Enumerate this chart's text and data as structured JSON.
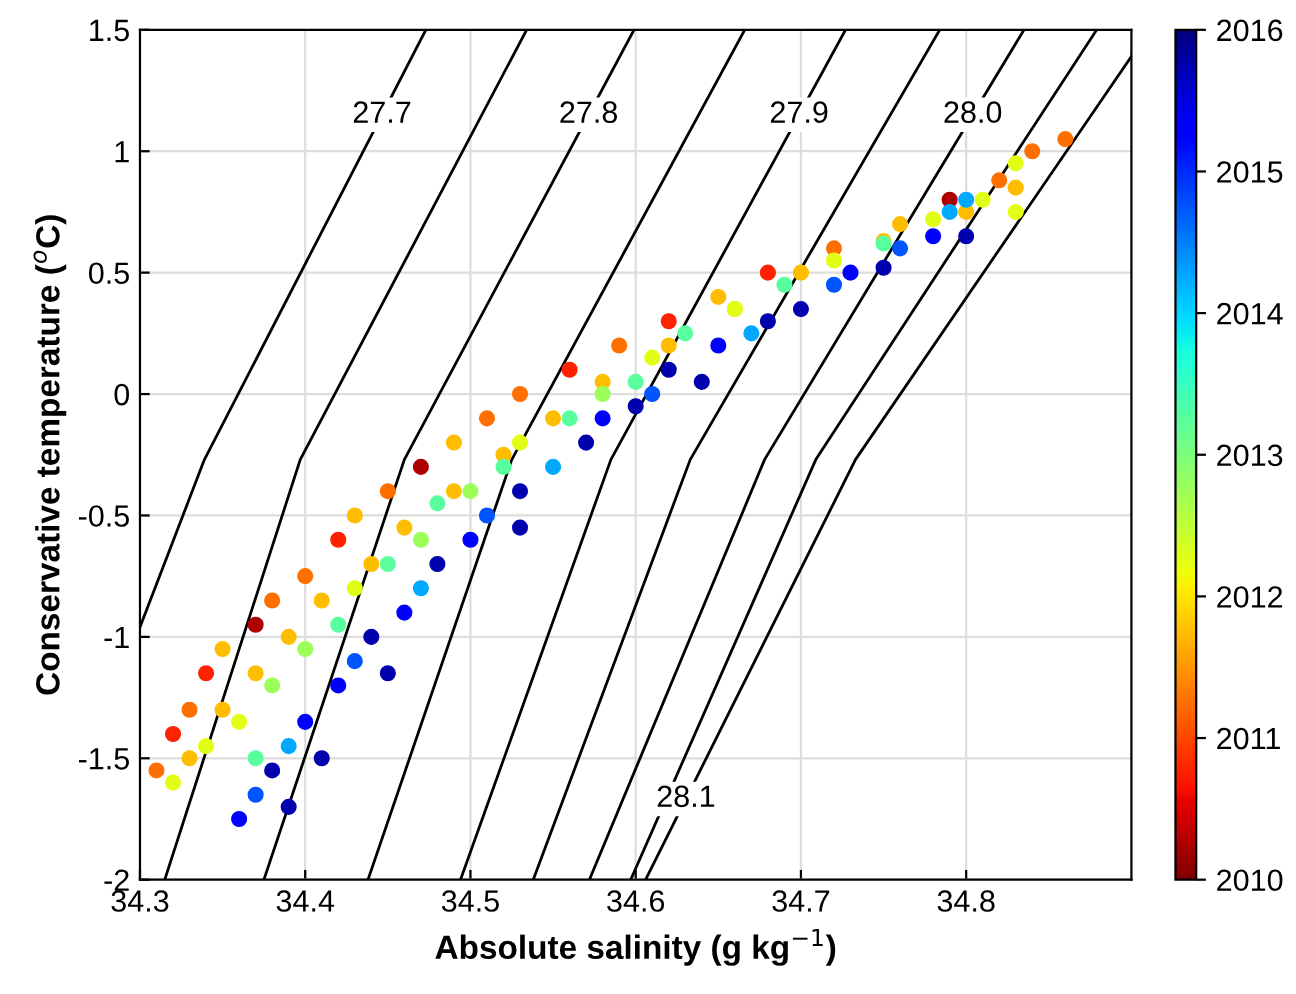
{
  "chart_data": {
    "type": "scatter",
    "xlabel": "Absolute salinity (g kg$^{−1}$)",
    "ylabel": "Conservative temperature ($^{o}$C)",
    "xlim": [
      34.3,
      34.9
    ],
    "xticks": [
      34.3,
      34.4,
      34.5,
      34.6,
      34.7,
      34.8
    ],
    "ylim": [
      -2,
      1.5
    ],
    "yticks": [
      -2,
      -1.5,
      -1,
      -0.5,
      0,
      0.5,
      1,
      1.5
    ],
    "clim": [
      2010,
      2016
    ],
    "cticks": [
      2010,
      2011,
      2012,
      2013,
      2014,
      2015,
      2016
    ],
    "grid": true,
    "series": [
      {
        "type": "line",
        "name": "27.7",
        "color": "#000000",
        "x": [
          34.473,
          34.339,
          34.3
        ],
        "values": [
          1.5,
          -0.27,
          -0.96
        ]
      },
      {
        "type": "line",
        "color": "#000000",
        "x": [
          34.534,
          34.397,
          34.315
        ],
        "values": [
          1.5,
          -0.27,
          -2
        ]
      },
      {
        "type": "line",
        "name": "27.8",
        "color": "#000000",
        "x": [
          34.599,
          34.46,
          34.375
        ],
        "values": [
          1.5,
          -0.27,
          -2
        ]
      },
      {
        "type": "line",
        "color": "#000000",
        "x": [
          34.666,
          34.525,
          34.438
        ],
        "values": [
          1.5,
          -0.27,
          -2
        ]
      },
      {
        "type": "line",
        "name": "27.9",
        "color": "#000000",
        "x": [
          34.727,
          34.585,
          34.494
        ],
        "values": [
          1.5,
          -0.27,
          -2
        ]
      },
      {
        "type": "line",
        "color": "#000000",
        "x": [
          34.784,
          34.633,
          34.538
        ],
        "values": [
          1.5,
          -0.27,
          -2
        ]
      },
      {
        "type": "line",
        "name": "28.0",
        "color": "#000000",
        "x": [
          34.835,
          34.678,
          34.572
        ],
        "values": [
          1.5,
          -0.27,
          -2
        ]
      },
      {
        "type": "line",
        "color": "#000000",
        "x": [
          34.879,
          34.709,
          34.597
        ],
        "values": [
          1.5,
          -0.27,
          -2
        ]
      },
      {
        "type": "line",
        "name": "28.1",
        "color": "#000000",
        "x": [
          34.9,
          34.733,
          34.606
        ],
        "values": [
          1.39,
          -0.27,
          -2
        ]
      },
      {
        "marker": "circle",
        "x": [
          34.31,
          34.32,
          34.33,
          34.34,
          34.35,
          34.37,
          34.38,
          34.4,
          34.42,
          34.43,
          34.45,
          34.47,
          34.49,
          34.51,
          34.53,
          34.56,
          34.59,
          34.62,
          34.65,
          34.68,
          34.72,
          34.76,
          34.79,
          34.82,
          34.84,
          34.86,
          34.33,
          34.35,
          34.37,
          34.39,
          34.41,
          34.44,
          34.46,
          34.49,
          34.52,
          34.55,
          34.58,
          34.62,
          34.66,
          34.7,
          34.75,
          34.8,
          34.83,
          34.32,
          34.34,
          34.36,
          34.37,
          34.38,
          34.4,
          34.42,
          34.43,
          34.45,
          34.47,
          34.48,
          34.5,
          34.52,
          34.53,
          34.56,
          34.58,
          34.6,
          34.61,
          34.63,
          34.66,
          34.69,
          34.72,
          34.75,
          34.78,
          34.81,
          34.83,
          34.83,
          34.36,
          34.37,
          34.38,
          34.39,
          34.39,
          34.4,
          34.41,
          34.42,
          34.43,
          34.44,
          34.45,
          34.46,
          34.47,
          34.48,
          34.5,
          34.51,
          34.53,
          34.53,
          34.55,
          34.57,
          34.58,
          34.6,
          34.61,
          34.62,
          34.64,
          34.65,
          34.67,
          34.68,
          34.7,
          34.72,
          34.73,
          34.75,
          34.76,
          34.78,
          34.79,
          34.8,
          34.8
        ],
        "values": [
          -1.55,
          -1.4,
          -1.3,
          -1.15,
          -1.05,
          -0.95,
          -0.85,
          -0.75,
          -0.6,
          -0.5,
          -0.4,
          -0.3,
          -0.2,
          -0.1,
          0.0,
          0.1,
          0.2,
          0.3,
          0.4,
          0.5,
          0.6,
          0.7,
          0.8,
          0.88,
          1.0,
          1.05,
          -1.5,
          -1.3,
          -1.15,
          -1.0,
          -0.85,
          -0.7,
          -0.55,
          -0.4,
          -0.25,
          -0.1,
          0.05,
          0.2,
          0.35,
          0.5,
          0.63,
          0.75,
          0.85,
          -1.6,
          -1.45,
          -1.35,
          -1.5,
          -1.2,
          -1.05,
          -0.95,
          -0.8,
          -0.7,
          -0.6,
          -0.45,
          -0.4,
          -0.3,
          -0.2,
          -0.1,
          0.0,
          0.05,
          0.15,
          0.25,
          0.35,
          0.45,
          0.55,
          0.62,
          0.72,
          0.8,
          0.95,
          0.75,
          -1.75,
          -1.65,
          -1.55,
          -1.7,
          -1.45,
          -1.35,
          -1.5,
          -1.2,
          -1.1,
          -1.0,
          -1.15,
          -0.9,
          -0.8,
          -0.7,
          -0.6,
          -0.5,
          -0.55,
          -0.4,
          -0.3,
          -0.2,
          -0.1,
          -0.05,
          0.0,
          0.1,
          0.05,
          0.2,
          0.25,
          0.3,
          0.35,
          0.45,
          0.5,
          0.52,
          0.6,
          0.65,
          0.75,
          0.65,
          0.8
        ],
        "cvalues": [
          2011.25,
          2010.75,
          2011.25,
          2010.75,
          2011.75,
          2010.25,
          2011.25,
          2011.25,
          2010.75,
          2011.75,
          2011.25,
          2010.25,
          2011.75,
          2011.25,
          2011.25,
          2010.75,
          2011.25,
          2010.75,
          2011.75,
          2010.75,
          2011.25,
          2011.75,
          2010.25,
          2011.25,
          2011.25,
          2011.25,
          2011.75,
          2011.75,
          2011.75,
          2011.75,
          2011.75,
          2011.75,
          2011.75,
          2011.75,
          2011.75,
          2011.75,
          2011.75,
          2011.75,
          2011.75,
          2011.75,
          2011.75,
          2011.75,
          2011.75,
          2012.25,
          2012.25,
          2012.25,
          2013.25,
          2012.75,
          2012.75,
          2013.25,
          2012.25,
          2013.25,
          2012.75,
          2013.25,
          2012.75,
          2013.25,
          2012.25,
          2013.25,
          2012.75,
          2013.25,
          2012.25,
          2013.25,
          2012.25,
          2013.25,
          2012.25,
          2013.25,
          2012.25,
          2012.25,
          2012.25,
          2012.25,
          2015.25,
          2014.75,
          2015.75,
          2015.75,
          2014.25,
          2015.25,
          2015.75,
          2015.25,
          2014.75,
          2015.75,
          2015.75,
          2015.25,
          2014.25,
          2015.75,
          2015.25,
          2014.75,
          2015.75,
          2015.75,
          2014.25,
          2015.75,
          2015.25,
          2015.75,
          2014.75,
          2015.75,
          2015.75,
          2015.25,
          2014.25,
          2015.75,
          2015.75,
          2014.75,
          2015.25,
          2015.75,
          2014.75,
          2015.25,
          2014.25,
          2015.75,
          2014.25
        ],
        "colors": [
          "#ff7000",
          "#ff2200",
          "#ff7000",
          "#ff2200",
          "#ffbe00",
          "#b00000",
          "#ff7000",
          "#ff7000",
          "#ff2200",
          "#ffbe00",
          "#ff7000",
          "#b00000",
          "#ffbe00",
          "#ff7000",
          "#ff7000",
          "#ff2200",
          "#ff7000",
          "#ff2200",
          "#ffbe00",
          "#ff2200",
          "#ff7000",
          "#ffbe00",
          "#b00000",
          "#ff7000",
          "#ff7000",
          "#ff7000",
          "#ffbe00",
          "#ffbe00",
          "#ffbe00",
          "#ffbe00",
          "#ffbe00",
          "#ffbe00",
          "#ffbe00",
          "#ffbe00",
          "#ffbe00",
          "#ffbe00",
          "#ffbe00",
          "#ffbe00",
          "#ffbe00",
          "#ffbe00",
          "#ffbe00",
          "#ffbe00",
          "#ffbe00",
          "#e2ff15",
          "#e2ff15",
          "#e2ff15",
          "#59ff9e",
          "#9eff59",
          "#9eff59",
          "#59ff9e",
          "#e2ff15",
          "#59ff9e",
          "#9eff59",
          "#59ff9e",
          "#9eff59",
          "#59ff9e",
          "#e2ff15",
          "#59ff9e",
          "#9eff59",
          "#59ff9e",
          "#e2ff15",
          "#59ff9e",
          "#e2ff15",
          "#59ff9e",
          "#e2ff15",
          "#59ff9e",
          "#e2ff15",
          "#e2ff15",
          "#e2ff15",
          "#e2ff15",
          "#0000ff",
          "#0055ff",
          "#0000b0",
          "#0000b0",
          "#00aaff",
          "#0000ff",
          "#0000b0",
          "#0000ff",
          "#0055ff",
          "#0000b0",
          "#0000b0",
          "#0000ff",
          "#00aaff",
          "#0000b0",
          "#0000ff",
          "#0055ff",
          "#0000b0",
          "#0000b0",
          "#00aaff",
          "#0000b0",
          "#0000ff",
          "#0000b0",
          "#0055ff",
          "#0000b0",
          "#0000b0",
          "#0000ff",
          "#00aaff",
          "#0000b0",
          "#0000b0",
          "#0055ff",
          "#0000ff",
          "#0000b0",
          "#0055ff",
          "#0000ff",
          "#00aaff",
          "#0000b0",
          "#00aaff"
        ]
      }
    ]
  }
}
